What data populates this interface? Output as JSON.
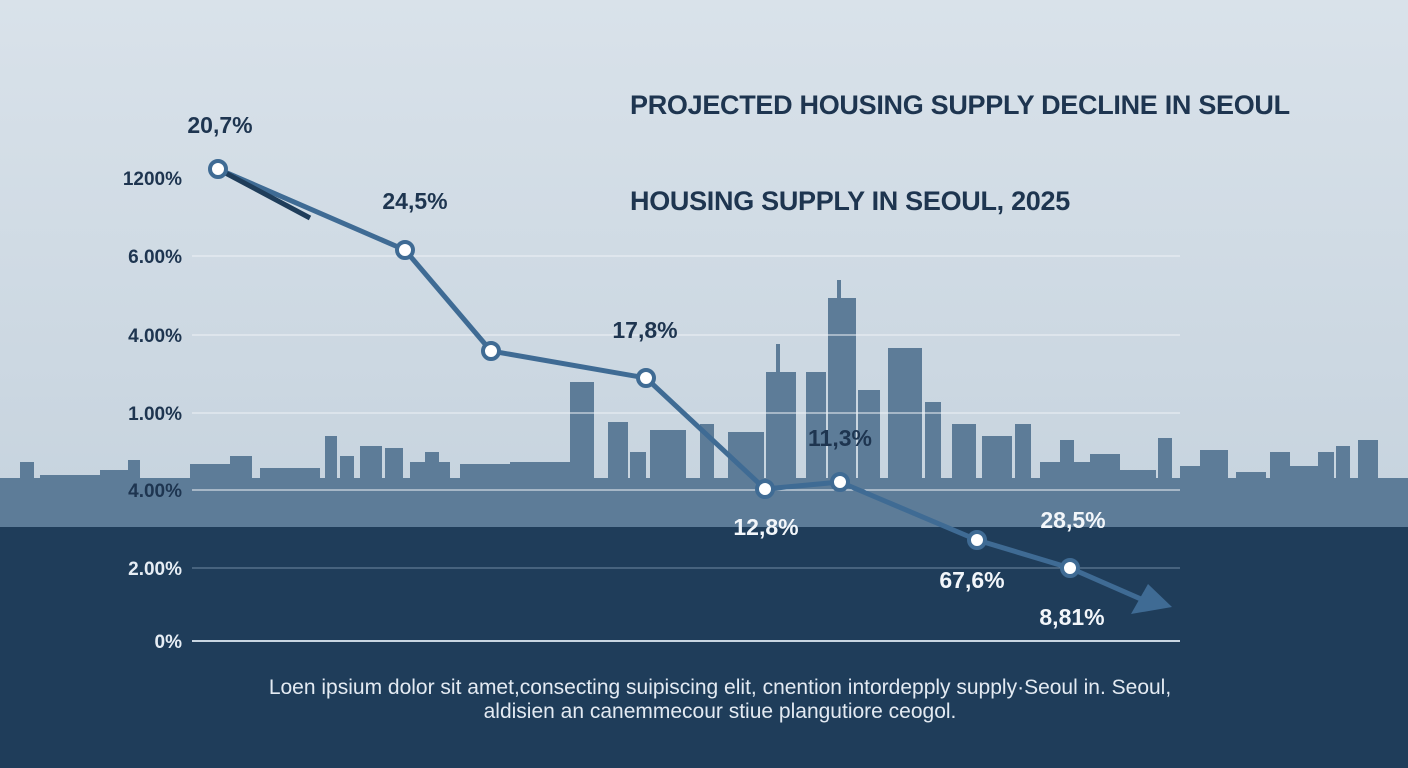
{
  "title": "PROJECTED HOUSING SUPPLY DECLINE IN SEOUL",
  "subtitle": "HOUSING SUPPLY IN SEOUL, 2025",
  "y_axis_labels": [
    "1200%",
    "6.00%",
    "4.00%",
    "1.00%",
    "4.00%",
    "2.00%",
    "0%"
  ],
  "point_labels": [
    "20,7%",
    "24,5%",
    "17,8%",
    "11,3%",
    "12,8%",
    "67,6%",
    "28,5%",
    "8,81%"
  ],
  "caption": [
    "Loen ipsium dolor sit amet,consecting  suipiscing elit, cnention intordepply supply·Seoul in. Seoul,",
    "aldisien an canemmecour stiue plangutiore ceogol."
  ]
}
